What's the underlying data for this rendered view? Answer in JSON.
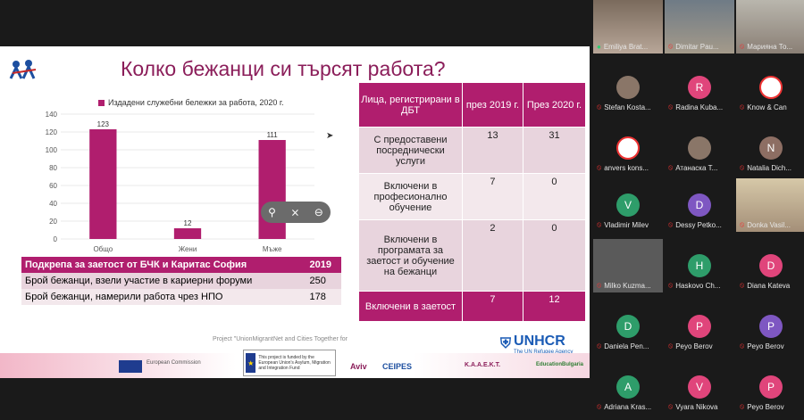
{
  "slide": {
    "title": "Колко бежанци си търсят работа?",
    "legend": "Издадени служебни бележки за работа, 2020 г.",
    "footer_note": "Project \"UnionMigrantNet and Cities Together for",
    "unhcr_name": "UNHCR",
    "unhcr_sub": "The UN Refugee Agency",
    "eu_fund_text": "This project is funded by the European Union's Asylum, Migration and Integration Fund",
    "eu_commission": "European Commission",
    "partners": [
      "Aviv",
      "CEIPES",
      "K.A.A.E.K.T.",
      "EducationBulgaria"
    ]
  },
  "chart_data": {
    "type": "bar",
    "title": "",
    "categories": [
      "Общо",
      "Жени",
      "Мъже"
    ],
    "series": [
      {
        "name": "Издадени служебни бележки за работа, 2020 г.",
        "values": [
          123,
          12,
          111
        ]
      }
    ],
    "ylim": [
      0,
      140
    ],
    "yticks": [
      0,
      20,
      40,
      60,
      80,
      100,
      120,
      140
    ],
    "bar_color": "#b01e6e",
    "grid": true,
    "legend_position": "top"
  },
  "left_table": {
    "header": [
      "Подкрепа за заетост от БЧК и Каритас София",
      "2019"
    ],
    "rows": [
      [
        "Брой бежанци, взели участие в кариерни форуми",
        "250"
      ],
      [
        "Брой бежанци, намерили работа чрез НПО",
        "178"
      ]
    ]
  },
  "right_table": {
    "header": [
      "Лица, регистрирани в ДБТ",
      "през 2019 г.",
      "През 2020 г."
    ],
    "rows": [
      [
        "С предоставени посреднически услуги",
        "13",
        "31"
      ],
      [
        "Включени в професионално обучение",
        "7",
        "0"
      ],
      [
        "Включени в програмата за заетост и обучение на бежанци",
        "2",
        "0"
      ],
      [
        "Включени в заетост",
        "7",
        "12"
      ]
    ]
  },
  "controls": {
    "pin": "pin-icon",
    "unmute": "mute-icon",
    "minus": "minus-icon"
  },
  "participants": [
    {
      "name": "Emiliya Brat...",
      "type": "video",
      "mic": "on"
    },
    {
      "name": "Dimitar Pau...",
      "type": "video",
      "mic": "off"
    },
    {
      "name": "Марияна То...",
      "type": "video",
      "mic": "off"
    },
    {
      "name": "Stefan Kosta...",
      "type": "photo",
      "mic": "off"
    },
    {
      "name": "Radina Kuba...",
      "type": "initial",
      "initial": "R",
      "color": "#e0457b",
      "mic": "off"
    },
    {
      "name": "Know & Can",
      "type": "logo",
      "mic": "off"
    },
    {
      "name": "anvers kons...",
      "type": "logo",
      "mic": "off"
    },
    {
      "name": "Атанаска Т...",
      "type": "photo",
      "mic": "off"
    },
    {
      "name": "Natalia Dich...",
      "type": "initial",
      "initial": "N",
      "color": "#8d6e63",
      "mic": "off"
    },
    {
      "name": "Vladimir Milev",
      "type": "initial",
      "initial": "V",
      "color": "#2e9d6a",
      "mic": "off"
    },
    {
      "name": "Dessy Petko...",
      "type": "initial",
      "initial": "D",
      "color": "#7e57c2",
      "mic": "off"
    },
    {
      "name": "Donka Vasil...",
      "type": "video",
      "mic": "off"
    },
    {
      "name": "Milko Kuzma...",
      "type": "video",
      "mic": "off"
    },
    {
      "name": "Haskovo Ch...",
      "type": "initial",
      "initial": "H",
      "color": "#2e9d6a",
      "mic": "off"
    },
    {
      "name": "Diana Kateva",
      "type": "initial",
      "initial": "D",
      "color": "#e0457b",
      "mic": "off"
    },
    {
      "name": "Daniela Pen...",
      "type": "initial",
      "initial": "D",
      "color": "#2e9d6a",
      "mic": "off"
    },
    {
      "name": "Peyo Berov",
      "type": "initial",
      "initial": "P",
      "color": "#e0457b",
      "mic": "off"
    },
    {
      "name": "Peyo Berov",
      "type": "initial",
      "initial": "P",
      "color": "#7e57c2",
      "mic": "off"
    },
    {
      "name": "Adriana Kras...",
      "type": "initial",
      "initial": "A",
      "color": "#2e9d6a",
      "mic": "off"
    },
    {
      "name": "Vyara Nikova",
      "type": "initial",
      "initial": "V",
      "color": "#e0457b",
      "mic": "off"
    },
    {
      "name": "Peyo Berov",
      "type": "initial",
      "initial": "P",
      "color": "#e0457b",
      "mic": "off"
    }
  ]
}
